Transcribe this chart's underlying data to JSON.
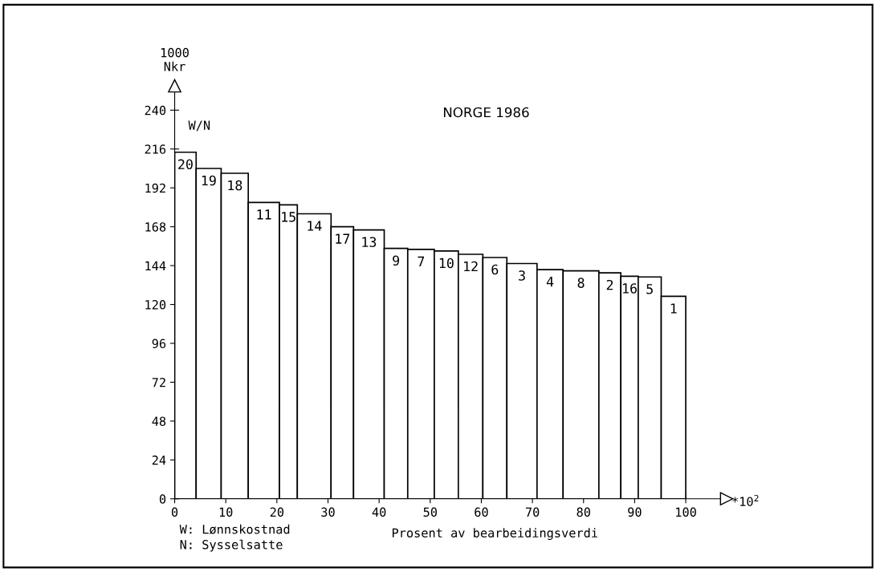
{
  "chart_data": {
    "type": "histogram",
    "title": "NORGE 1986",
    "xlabel": "Prosent av bearbeidingsverdi",
    "ylabel": "1000\nNkr",
    "bins": [
      0,
      4.2,
      9.1,
      14.4,
      20.5,
      24.0,
      30.6,
      35.0,
      41.0,
      45.6,
      50.8,
      55.5,
      60.3,
      65.0,
      70.9,
      76.0,
      83.0,
      87.3,
      90.7,
      95.2,
      100
    ],
    "values": [
      214,
      204,
      201,
      183,
      181.5,
      176,
      168,
      166,
      154.6,
      154,
      153,
      151,
      149,
      145.3,
      141.5,
      140.8,
      139.5,
      137.4,
      137,
      125
    ],
    "color": "#ffffff",
    "xlim": [
      0,
      108
    ],
    "ylim": [
      0,
      255
    ],
    "xticks": [
      0,
      10,
      20,
      30,
      40,
      50,
      60,
      70,
      80,
      90,
      100
    ],
    "yticks": [
      0,
      24,
      48,
      72,
      96,
      120,
      144,
      168,
      192,
      216,
      240
    ],
    "grid": false,
    "annotations": [
      {
        "text": "20",
        "x": 2.1,
        "y": 214
      },
      {
        "text": "19",
        "x": 6.65,
        "y": 204
      },
      {
        "text": "18",
        "x": 11.75,
        "y": 201
      },
      {
        "text": "11",
        "x": 17.45,
        "y": 183
      },
      {
        "text": "15",
        "x": 22.25,
        "y": 181.5
      },
      {
        "text": "14",
        "x": 27.3,
        "y": 176
      },
      {
        "text": "17",
        "x": 32.8,
        "y": 168
      },
      {
        "text": "13",
        "x": 38.0,
        "y": 166
      },
      {
        "text": "9",
        "x": 43.3,
        "y": 154.6
      },
      {
        "text": "7",
        "x": 48.2,
        "y": 154
      },
      {
        "text": "10",
        "x": 53.15,
        "y": 153
      },
      {
        "text": "12",
        "x": 57.9,
        "y": 151
      },
      {
        "text": "6",
        "x": 62.65,
        "y": 149
      },
      {
        "text": "3",
        "x": 67.95,
        "y": 145.3
      },
      {
        "text": "4",
        "x": 73.45,
        "y": 141.5
      },
      {
        "text": "8",
        "x": 79.5,
        "y": 140.8
      },
      {
        "text": "2",
        "x": 85.15,
        "y": 139.5
      },
      {
        "text": "16",
        "x": 89.0,
        "y": 137.4
      },
      {
        "text": "5",
        "x": 92.95,
        "y": 137
      },
      {
        "text": "1",
        "x": 97.6,
        "y": 125
      },
      "W/N",
      "*10$^{2}$",
      "W: Lønnskostnad",
      "N: Sysselsatte"
    ]
  }
}
